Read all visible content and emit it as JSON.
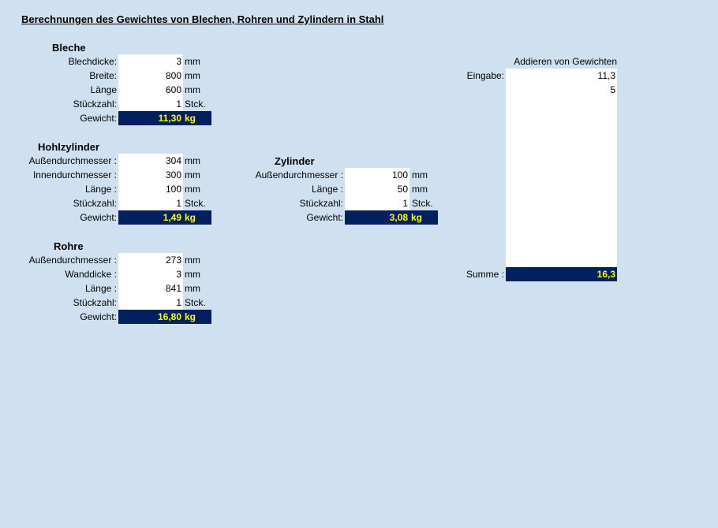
{
  "title": "Berechnungen des Gewichtes von Blechen, Rohren und Zylindern in Stahl",
  "bleche": {
    "heading": "Bleche",
    "rows": [
      {
        "label": "Blechdicke:",
        "value": "3",
        "unit": "mm"
      },
      {
        "label": "Breite:",
        "value": "800",
        "unit": "mm"
      },
      {
        "label": "Länge",
        "value": "600",
        "unit": "mm"
      },
      {
        "label": "Stückzahl:",
        "value": "1",
        "unit": "Stck."
      }
    ],
    "result_label": "Gewicht:",
    "result_value": "11,30",
    "result_unit": "kg"
  },
  "hohlzylinder": {
    "heading": "Hohlzylinder",
    "rows": [
      {
        "label": "Außendurchmesser :",
        "value": "304",
        "unit": "mm"
      },
      {
        "label": "Innendurchmesser :",
        "value": "300",
        "unit": "mm"
      },
      {
        "label": "Länge :",
        "value": "100",
        "unit": "mm"
      },
      {
        "label": "Stückzahl:",
        "value": "1",
        "unit": "Stck."
      }
    ],
    "result_label": "Gewicht:",
    "result_value": "1,49",
    "result_unit": "kg"
  },
  "zylinder": {
    "heading": "Zylinder",
    "rows": [
      {
        "label": "Außendurchmesser :",
        "value": "100",
        "unit": "mm"
      },
      {
        "label": "Länge :",
        "value": "50",
        "unit": "mm"
      },
      {
        "label": "Stückzahl:",
        "value": "1",
        "unit": "Stck."
      }
    ],
    "result_label": "Gewicht:",
    "result_value": "3,08",
    "result_unit": "kg"
  },
  "rohre": {
    "heading": "Rohre",
    "rows": [
      {
        "label": "Außendurchmesser :",
        "value": "273",
        "unit": "mm"
      },
      {
        "label": "Wanddicke :",
        "value": "3",
        "unit": "mm"
      },
      {
        "label": "Länge :",
        "value": "841",
        "unit": "mm"
      },
      {
        "label": "Stückzahl:",
        "value": "1",
        "unit": "Stck."
      }
    ],
    "result_label": "Gewicht:",
    "result_value": "16,80",
    "result_unit": "kg"
  },
  "addieren": {
    "heading": "Addieren von Gewichten",
    "input_label": "Eingabe:",
    "entries": [
      "11,3",
      "5"
    ],
    "sum_label": "Summe :",
    "sum_value": "16,3"
  },
  "colors": {
    "background": "#cfe1f1",
    "result_fill": "#002060",
    "result_text": "#ffff00"
  }
}
